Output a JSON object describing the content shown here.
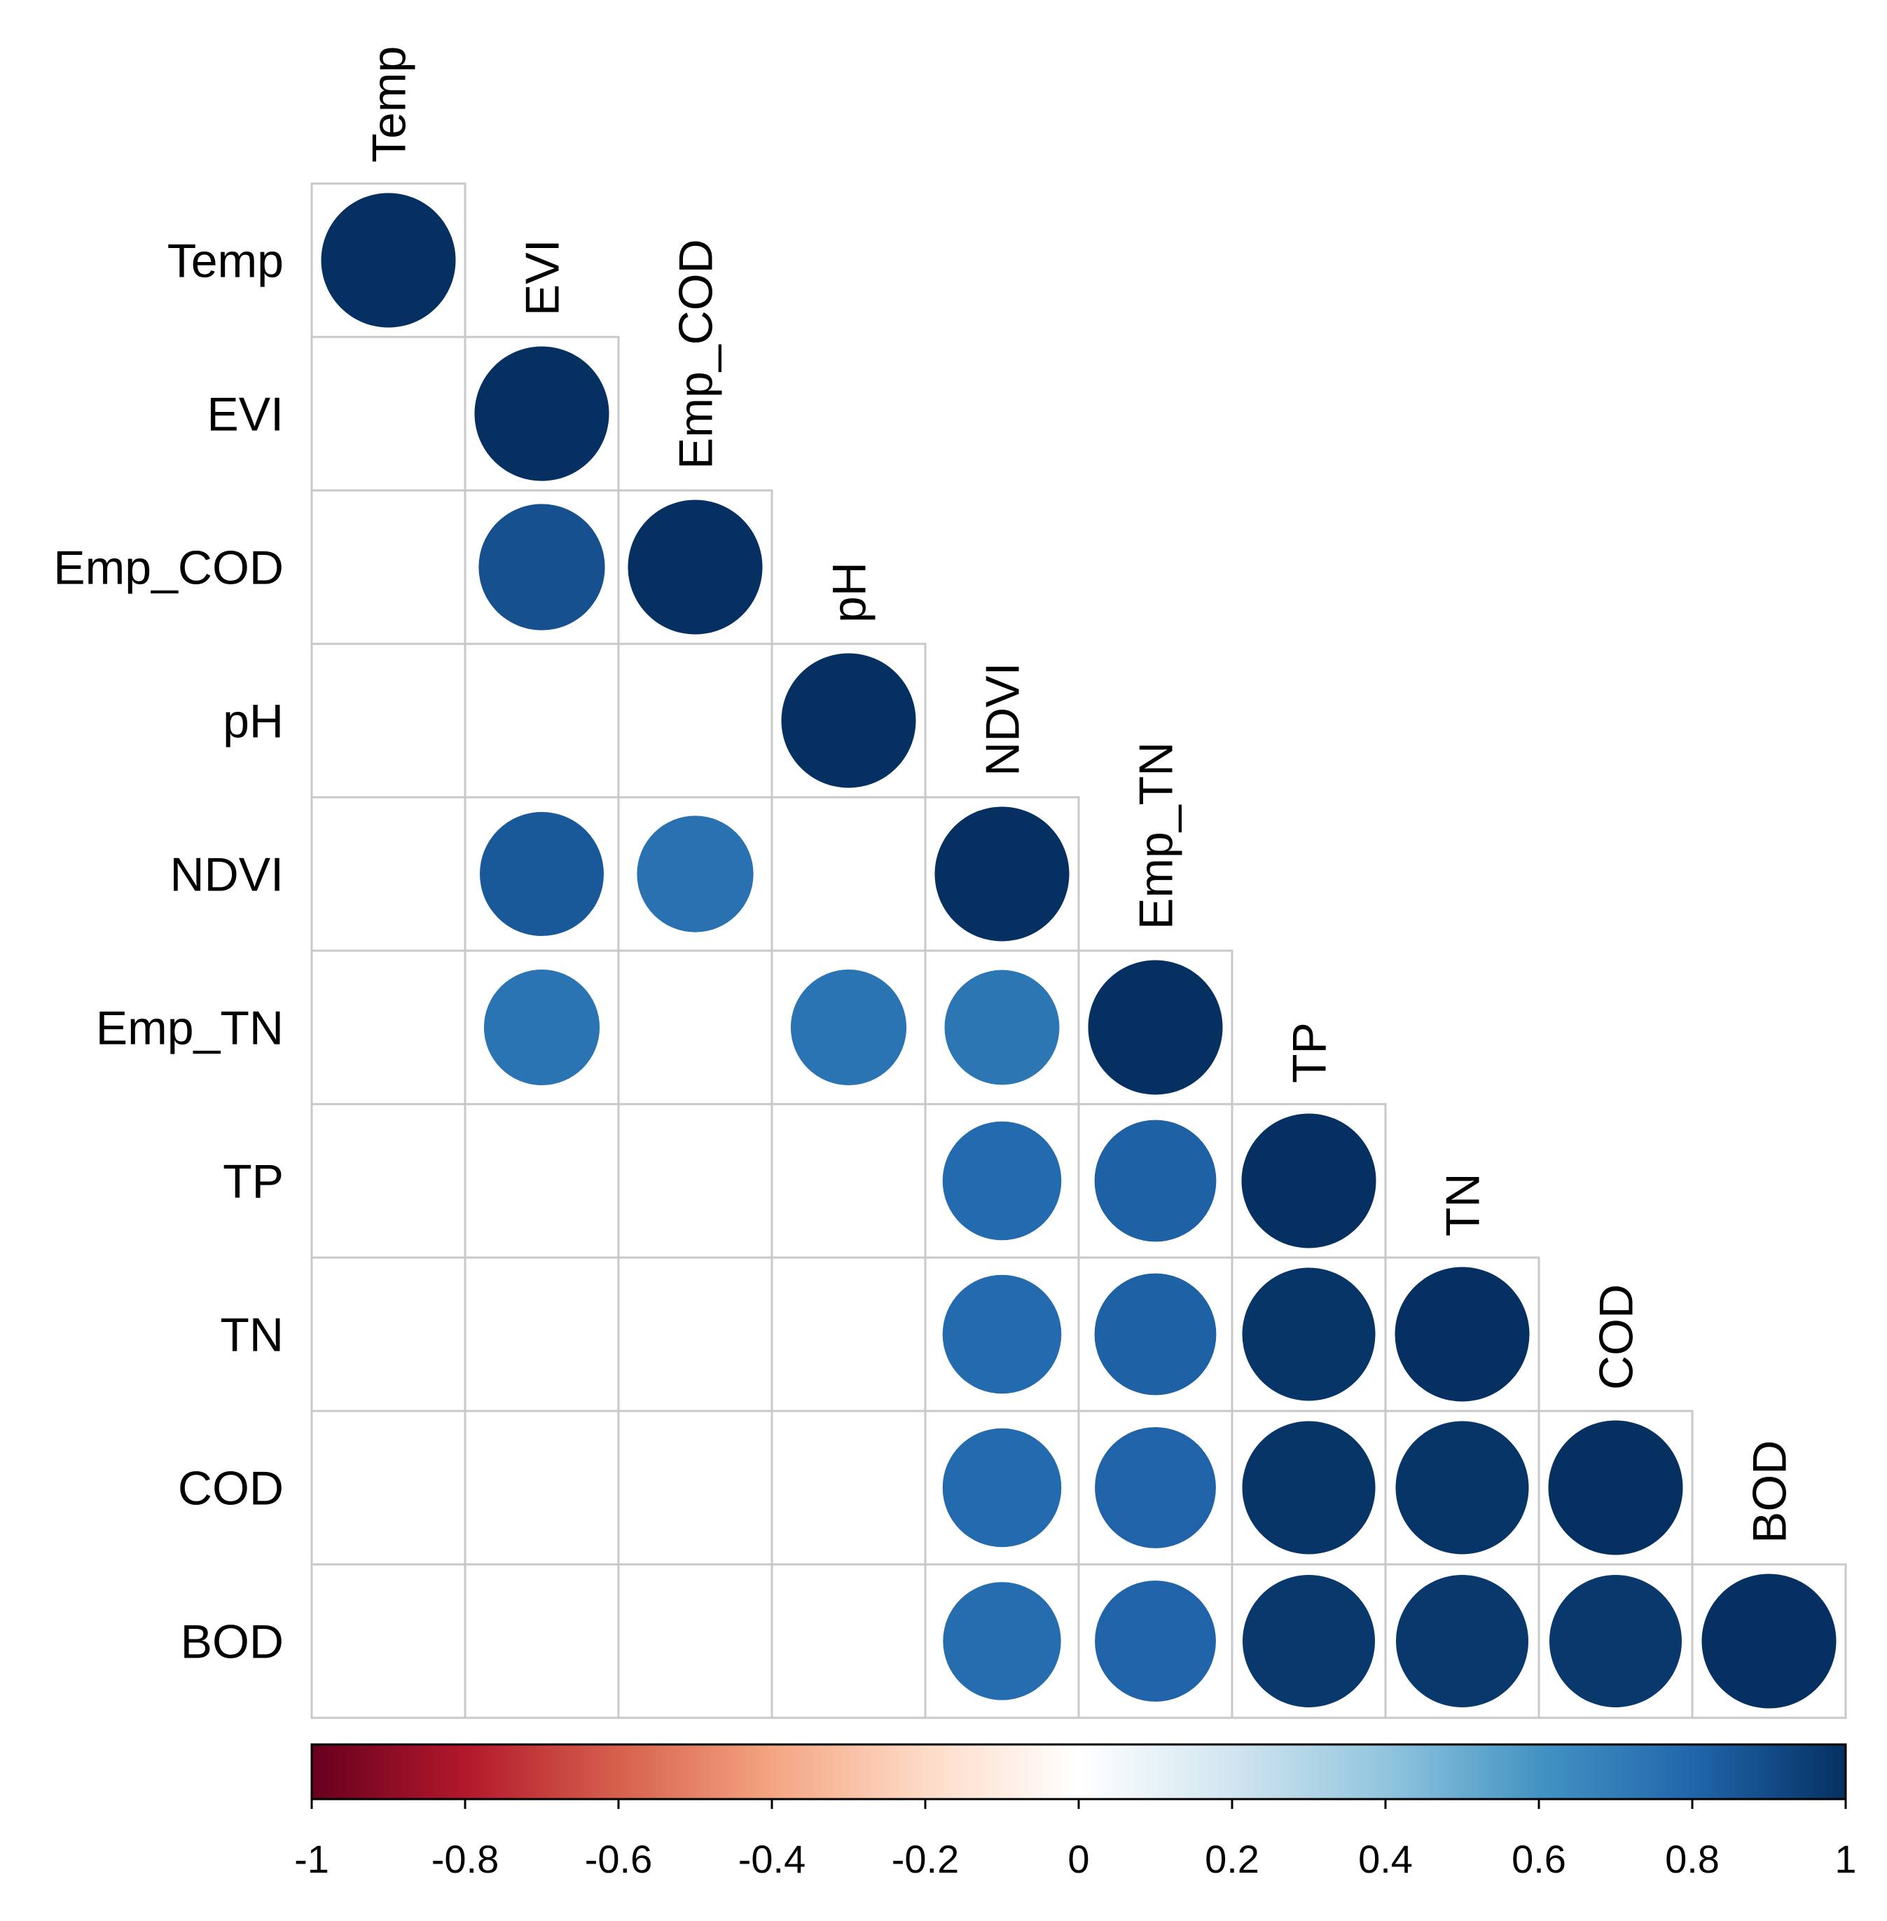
{
  "chart_data": {
    "type": "heatmap",
    "style": "correlation-matrix-circles-lower-triangle",
    "variables": [
      "Temp",
      "EVI",
      "Emp_COD",
      "pH",
      "NDVI",
      "Emp_TN",
      "TP",
      "TN",
      "COD",
      "BOD"
    ],
    "matrix": [
      [
        1.0,
        null,
        null,
        null,
        null,
        null,
        null,
        null,
        null,
        null
      ],
      [
        null,
        1.0,
        null,
        null,
        null,
        null,
        null,
        null,
        null,
        null
      ],
      [
        null,
        0.88,
        1.0,
        null,
        null,
        null,
        null,
        null,
        null,
        null
      ],
      [
        null,
        null,
        null,
        1.0,
        null,
        null,
        null,
        null,
        null,
        null
      ],
      [
        null,
        0.85,
        0.75,
        null,
        1.0,
        null,
        null,
        null,
        null,
        null
      ],
      [
        null,
        0.74,
        null,
        0.74,
        0.73,
        1.0,
        null,
        null,
        null,
        null
      ],
      [
        null,
        null,
        null,
        null,
        0.78,
        0.82,
        1.0,
        null,
        null,
        null
      ],
      [
        null,
        null,
        null,
        null,
        0.78,
        0.82,
        0.98,
        1.0,
        null,
        null
      ],
      [
        null,
        null,
        null,
        null,
        0.78,
        0.81,
        0.98,
        0.98,
        1.0,
        null
      ],
      [
        null,
        null,
        null,
        null,
        0.77,
        0.81,
        0.97,
        0.97,
        0.97,
        1.0
      ]
    ],
    "colorbar": {
      "range": [
        -1,
        1
      ],
      "tick_values": [
        -1,
        -0.8,
        -0.6,
        -0.4,
        -0.2,
        0,
        0.2,
        0.4,
        0.6,
        0.8,
        1
      ],
      "tick_labels": [
        "-1",
        "-0.8",
        "-0.6",
        "-0.4",
        "-0.2",
        "0",
        "0.2",
        "0.4",
        "0.6",
        "0.8",
        "1"
      ],
      "palette": [
        "#67001F",
        "#B2182B",
        "#D6604D",
        "#F4A582",
        "#FDDBC7",
        "#FFFFFF",
        "#D1E5F0",
        "#92C5DE",
        "#4393C3",
        "#2166AC",
        "#053061"
      ],
      "placement": "bottom"
    },
    "grid": true
  }
}
